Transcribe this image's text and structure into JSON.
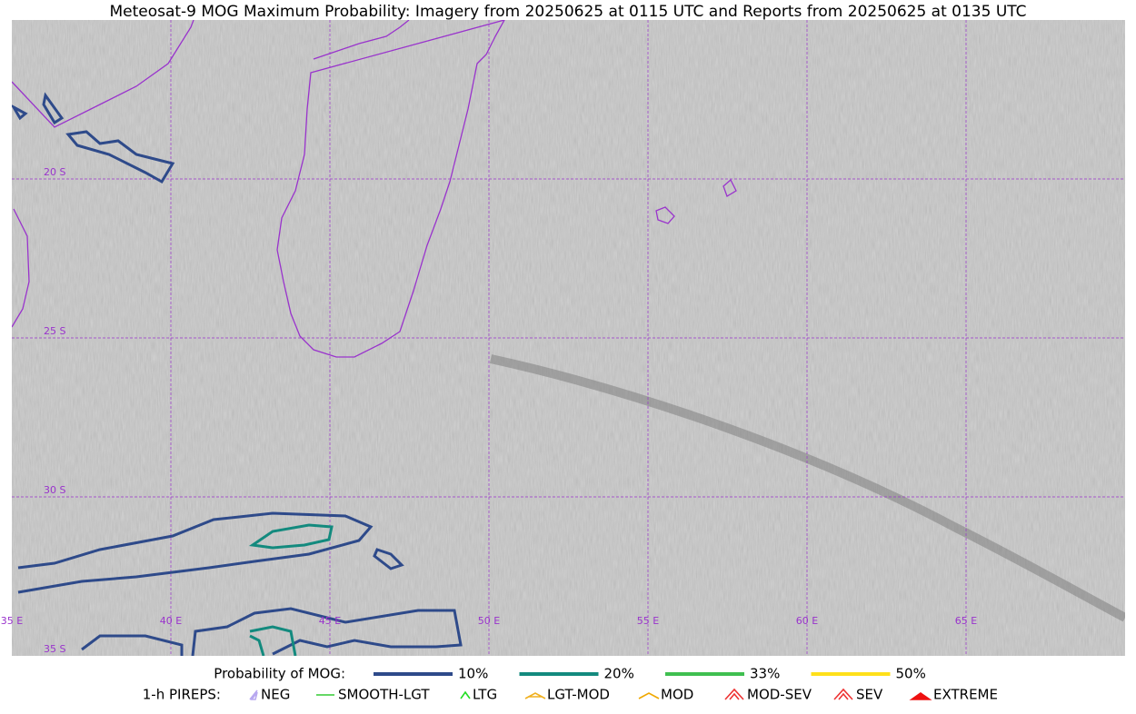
{
  "title": "Meteosat-9 MOG Maximum Probability: Imagery from 20250625 at 0115 UTC and Reports from 20250625 at 0135 UTC",
  "map": {
    "lat_labels": [
      "20 S",
      "25 S",
      "30 S",
      "35 S"
    ],
    "lon_labels": [
      "35 E",
      "40 E",
      "45 E",
      "50 E",
      "55 E",
      "60 E",
      "65 E"
    ]
  },
  "legend": {
    "title": "Probability of MOG:",
    "items": [
      {
        "label": "10%",
        "color": "#2e4a8a"
      },
      {
        "label": "20%",
        "color": "#138a7e"
      },
      {
        "label": "33%",
        "color": "#3fbf50"
      },
      {
        "label": "50%",
        "color": "#ffe01a"
      }
    ]
  },
  "pireps": {
    "title": "1-h PIREPS:",
    "items": [
      {
        "label": "NEG",
        "color": "#b8a8f0"
      },
      {
        "label": "SMOOTH-LGT",
        "color": "#33cc33"
      },
      {
        "label": "LTG",
        "color": "#22dd22"
      },
      {
        "label": "LGT-MOD",
        "color": "#f0b020"
      },
      {
        "label": "MOD",
        "color": "#f0a800"
      },
      {
        "label": "MOD-SEV",
        "color": "#ee3333"
      },
      {
        "label": "SEV",
        "color": "#ee3333"
      },
      {
        "label": "EXTREME",
        "color": "#ee1111"
      }
    ]
  }
}
